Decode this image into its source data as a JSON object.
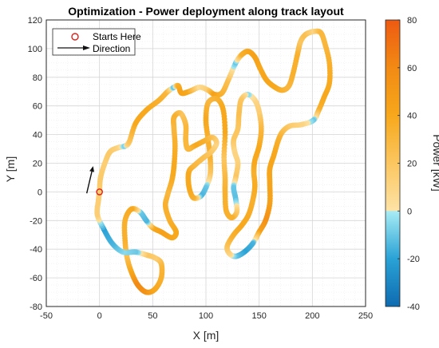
{
  "chart_data": {
    "type": "scatter",
    "title": "Optimization - Power deployment along track layout",
    "xlabel": "X [m]",
    "ylabel": "Y [m]",
    "xlim": [
      -50,
      250
    ],
    "ylim": [
      -80,
      120
    ],
    "xticks": [
      -50,
      0,
      50,
      100,
      150,
      200,
      250
    ],
    "yticks": [
      -80,
      -60,
      -40,
      -20,
      0,
      20,
      40,
      60,
      80,
      100,
      120
    ],
    "grid": true,
    "minor_grid": true,
    "legend": {
      "placement": "top-left",
      "entries": [
        {
          "label": "Starts Here",
          "marker": "red-circle"
        },
        {
          "label": "Direction",
          "marker": "arrow"
        }
      ]
    },
    "colorbar": {
      "label": "Power [kW]",
      "range": [
        -40,
        80
      ],
      "ticks": [
        -40,
        -20,
        0,
        20,
        40,
        60,
        80
      ],
      "placement": "right"
    },
    "start_point": {
      "x": 0,
      "y": 0
    },
    "direction_arrow": {
      "from": {
        "x": -12,
        "y": -1
      },
      "to": {
        "x": -6,
        "y": 18
      }
    },
    "track": [
      {
        "x": 0,
        "y": 0,
        "p": 15
      },
      {
        "x": 1,
        "y": 10,
        "p": 18
      },
      {
        "x": 5,
        "y": 20,
        "p": 14
      },
      {
        "x": 10,
        "y": 28,
        "p": 18
      },
      {
        "x": 18,
        "y": 31,
        "p": 12
      },
      {
        "x": 24,
        "y": 32,
        "p": -8
      },
      {
        "x": 28,
        "y": 35,
        "p": 20
      },
      {
        "x": 34,
        "y": 48,
        "p": 40
      },
      {
        "x": 44,
        "y": 57,
        "p": 40
      },
      {
        "x": 56,
        "y": 64,
        "p": 35
      },
      {
        "x": 64,
        "y": 70,
        "p": 30
      },
      {
        "x": 70,
        "y": 73,
        "p": -12
      },
      {
        "x": 74,
        "y": 74,
        "p": 35
      },
      {
        "x": 77,
        "y": 69,
        "p": 45
      },
      {
        "x": 84,
        "y": 70,
        "p": 40
      },
      {
        "x": 94,
        "y": 73,
        "p": 5
      },
      {
        "x": 102,
        "y": 71,
        "p": 15
      },
      {
        "x": 108,
        "y": 68,
        "p": 45
      },
      {
        "x": 115,
        "y": 69,
        "p": 35
      },
      {
        "x": 121,
        "y": 78,
        "p": 25
      },
      {
        "x": 128,
        "y": 90,
        "p": -10
      },
      {
        "x": 134,
        "y": 96,
        "p": 35
      },
      {
        "x": 140,
        "y": 98,
        "p": 40
      },
      {
        "x": 146,
        "y": 94,
        "p": 45
      },
      {
        "x": 151,
        "y": 86,
        "p": 40
      },
      {
        "x": 157,
        "y": 78,
        "p": 42
      },
      {
        "x": 165,
        "y": 73,
        "p": 40
      },
      {
        "x": 172,
        "y": 71,
        "p": 35
      },
      {
        "x": 178,
        "y": 74,
        "p": 30
      },
      {
        "x": 182,
        "y": 83,
        "p": 35
      },
      {
        "x": 186,
        "y": 96,
        "p": 35
      },
      {
        "x": 189,
        "y": 105,
        "p": 20
      },
      {
        "x": 194,
        "y": 110,
        "p": 25
      },
      {
        "x": 202,
        "y": 112,
        "p": 10
      },
      {
        "x": 208,
        "y": 111,
        "p": 30
      },
      {
        "x": 212,
        "y": 103,
        "p": 30
      },
      {
        "x": 216,
        "y": 90,
        "p": 35
      },
      {
        "x": 216,
        "y": 76,
        "p": 38
      },
      {
        "x": 211,
        "y": 66,
        "p": 40
      },
      {
        "x": 206,
        "y": 57,
        "p": 35
      },
      {
        "x": 201,
        "y": 50,
        "p": -10
      },
      {
        "x": 190,
        "y": 47,
        "p": 10
      },
      {
        "x": 179,
        "y": 46,
        "p": 15
      },
      {
        "x": 172,
        "y": 42,
        "p": 25
      },
      {
        "x": 168,
        "y": 36,
        "p": 35
      },
      {
        "x": 164,
        "y": 26,
        "p": 40
      },
      {
        "x": 160,
        "y": 16,
        "p": 42
      },
      {
        "x": 160,
        "y": 6,
        "p": 42
      },
      {
        "x": 160,
        "y": -8,
        "p": 45
      },
      {
        "x": 156,
        "y": -20,
        "p": 55
      },
      {
        "x": 150,
        "y": -28,
        "p": 45
      },
      {
        "x": 144,
        "y": -36,
        "p": -15
      },
      {
        "x": 136,
        "y": -42,
        "p": -20
      },
      {
        "x": 128,
        "y": -45,
        "p": -12
      },
      {
        "x": 122,
        "y": -43,
        "p": 8
      },
      {
        "x": 120,
        "y": -38,
        "p": 20
      },
      {
        "x": 126,
        "y": -30,
        "p": 35
      },
      {
        "x": 134,
        "y": -23,
        "p": 40
      },
      {
        "x": 140,
        "y": -16,
        "p": 38
      },
      {
        "x": 144,
        "y": -6,
        "p": 35
      },
      {
        "x": 146,
        "y": 4,
        "p": 38
      },
      {
        "x": 145,
        "y": 14,
        "p": 35
      },
      {
        "x": 146,
        "y": 22,
        "p": 40
      },
      {
        "x": 150,
        "y": 32,
        "p": 40
      },
      {
        "x": 152,
        "y": 44,
        "p": 30
      },
      {
        "x": 150,
        "y": 56,
        "p": 15
      },
      {
        "x": 146,
        "y": 64,
        "p": 10
      },
      {
        "x": 139,
        "y": 68,
        "p": -5
      },
      {
        "x": 133,
        "y": 64,
        "p": 20
      },
      {
        "x": 131,
        "y": 54,
        "p": 25
      },
      {
        "x": 130,
        "y": 44,
        "p": 20
      },
      {
        "x": 126,
        "y": 36,
        "p": 20
      },
      {
        "x": 127,
        "y": 28,
        "p": 10
      },
      {
        "x": 130,
        "y": 20,
        "p": 12
      },
      {
        "x": 128,
        "y": 10,
        "p": 20
      },
      {
        "x": 126,
        "y": 3,
        "p": -10
      },
      {
        "x": 128,
        "y": -5,
        "p": -12
      },
      {
        "x": 129,
        "y": -14,
        "p": 15
      },
      {
        "x": 124,
        "y": -18,
        "p": 35
      },
      {
        "x": 119,
        "y": -13,
        "p": 35
      },
      {
        "x": 118,
        "y": 0,
        "p": 35
      },
      {
        "x": 118,
        "y": 10,
        "p": 30
      },
      {
        "x": 117,
        "y": 24,
        "p": 20
      },
      {
        "x": 118,
        "y": 42,
        "p": 40
      },
      {
        "x": 116,
        "y": 58,
        "p": 40
      },
      {
        "x": 110,
        "y": 65,
        "p": 35
      },
      {
        "x": 102,
        "y": 62,
        "p": 30
      },
      {
        "x": 100,
        "y": 50,
        "p": 40
      },
      {
        "x": 102,
        "y": 37,
        "p": 35
      },
      {
        "x": 104,
        "y": 24,
        "p": 35
      },
      {
        "x": 104,
        "y": 12,
        "p": 20
      },
      {
        "x": 100,
        "y": 3,
        "p": -10
      },
      {
        "x": 95,
        "y": -3,
        "p": -15
      },
      {
        "x": 88,
        "y": -4,
        "p": 35
      },
      {
        "x": 84,
        "y": 4,
        "p": 40
      },
      {
        "x": 84,
        "y": 14,
        "p": 40
      },
      {
        "x": 90,
        "y": 19,
        "p": 30
      },
      {
        "x": 98,
        "y": 24,
        "p": 25
      },
      {
        "x": 105,
        "y": 28,
        "p": 20
      },
      {
        "x": 110,
        "y": 34,
        "p": 10
      },
      {
        "x": 106,
        "y": 38,
        "p": 20
      },
      {
        "x": 97,
        "y": 35,
        "p": 35
      },
      {
        "x": 89,
        "y": 32,
        "p": 40
      },
      {
        "x": 83,
        "y": 30,
        "p": 30
      },
      {
        "x": 81,
        "y": 36,
        "p": 30
      },
      {
        "x": 81,
        "y": 47,
        "p": 30
      },
      {
        "x": 76,
        "y": 55,
        "p": 20
      },
      {
        "x": 70,
        "y": 52,
        "p": 35
      },
      {
        "x": 70,
        "y": 44,
        "p": 30
      },
      {
        "x": 71,
        "y": 32,
        "p": 35
      },
      {
        "x": 70,
        "y": 18,
        "p": 40
      },
      {
        "x": 68,
        "y": 8,
        "p": 38
      },
      {
        "x": 64,
        "y": -2,
        "p": 30
      },
      {
        "x": 62,
        "y": -10,
        "p": 35
      },
      {
        "x": 66,
        "y": -20,
        "p": 35
      },
      {
        "x": 72,
        "y": -28,
        "p": 40
      },
      {
        "x": 68,
        "y": -32,
        "p": 40
      },
      {
        "x": 58,
        "y": -28,
        "p": 45
      },
      {
        "x": 50,
        "y": -25,
        "p": 40
      },
      {
        "x": 44,
        "y": -20,
        "p": -15
      },
      {
        "x": 38,
        "y": -14,
        "p": -10
      },
      {
        "x": 30,
        "y": -12,
        "p": 40
      },
      {
        "x": 24,
        "y": -20,
        "p": 35
      },
      {
        "x": 24,
        "y": -34,
        "p": 35
      },
      {
        "x": 26,
        "y": -46,
        "p": 25
      },
      {
        "x": 30,
        "y": -56,
        "p": 40
      },
      {
        "x": 36,
        "y": -65,
        "p": 60
      },
      {
        "x": 44,
        "y": -70,
        "p": 55
      },
      {
        "x": 52,
        "y": -68,
        "p": 40
      },
      {
        "x": 58,
        "y": -60,
        "p": 35
      },
      {
        "x": 58,
        "y": -50,
        "p": 30
      },
      {
        "x": 52,
        "y": -46,
        "p": 15
      },
      {
        "x": 44,
        "y": -44,
        "p": 20
      },
      {
        "x": 34,
        "y": -42,
        "p": -10
      },
      {
        "x": 22,
        "y": -42,
        "p": -5
      },
      {
        "x": 12,
        "y": -36,
        "p": -15
      },
      {
        "x": 4,
        "y": -26,
        "p": -20
      },
      {
        "x": -2,
        "y": -16,
        "p": 15
      },
      {
        "x": -1,
        "y": -6,
        "p": 15
      },
      {
        "x": 0,
        "y": 0,
        "p": 15
      }
    ]
  }
}
